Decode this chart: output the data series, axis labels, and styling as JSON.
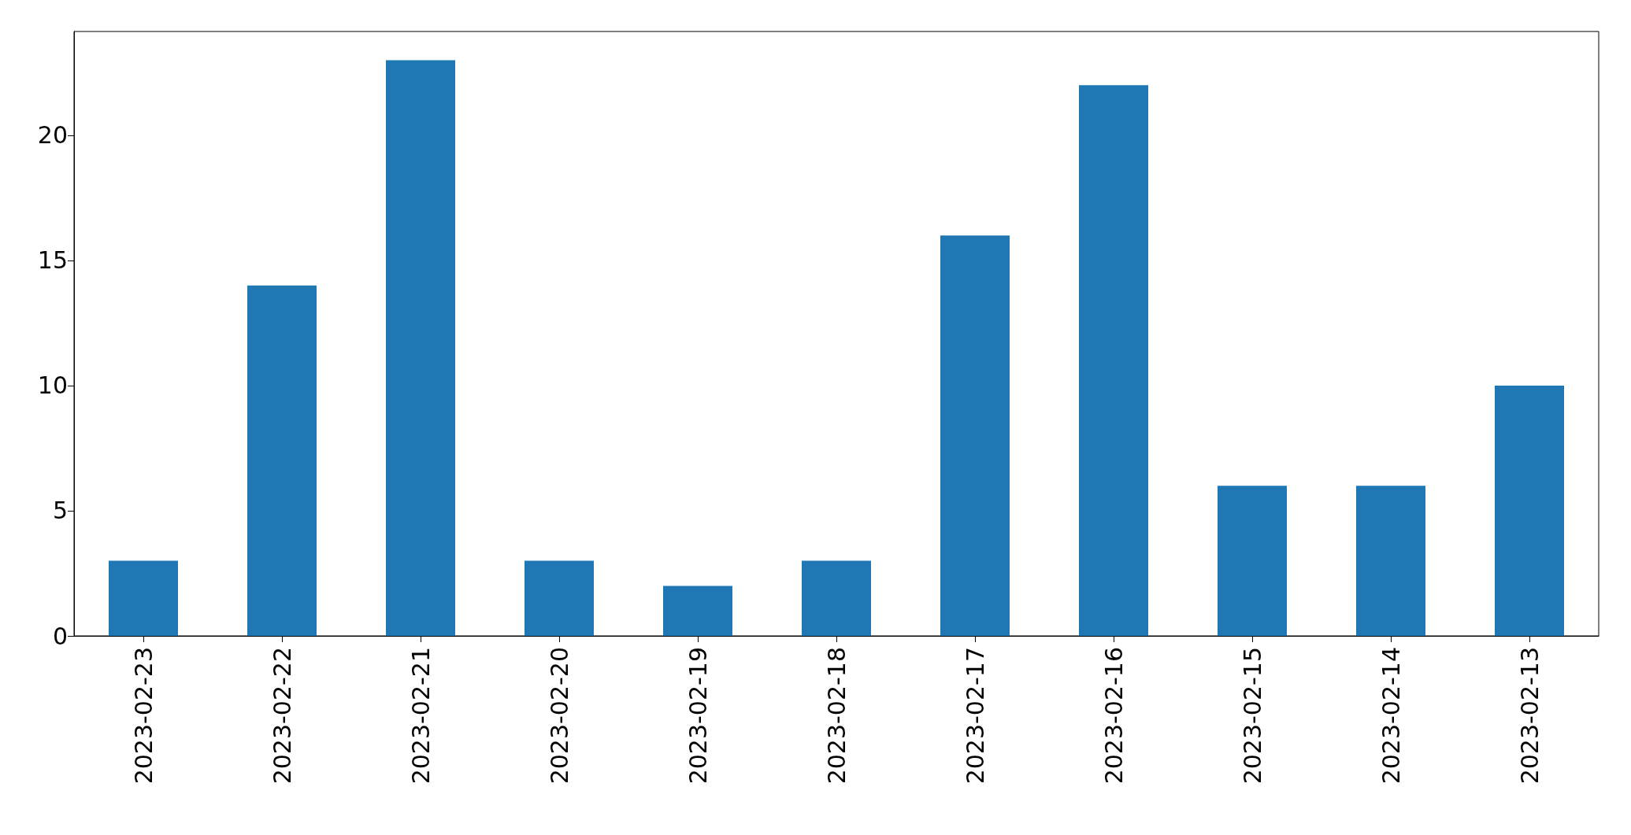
{
  "chart_data": {
    "type": "bar",
    "categories": [
      "2023-02-23",
      "2023-02-22",
      "2023-02-21",
      "2023-02-20",
      "2023-02-19",
      "2023-02-18",
      "2023-02-17",
      "2023-02-16",
      "2023-02-15",
      "2023-02-14",
      "2023-02-13"
    ],
    "values": [
      3,
      14,
      23,
      3,
      2,
      3,
      16,
      22,
      6,
      6,
      10
    ],
    "color": "#1f77b4",
    "ylim": [
      0,
      24.15
    ],
    "yticks": [
      0,
      5,
      10,
      15,
      20
    ],
    "grid": false
  }
}
